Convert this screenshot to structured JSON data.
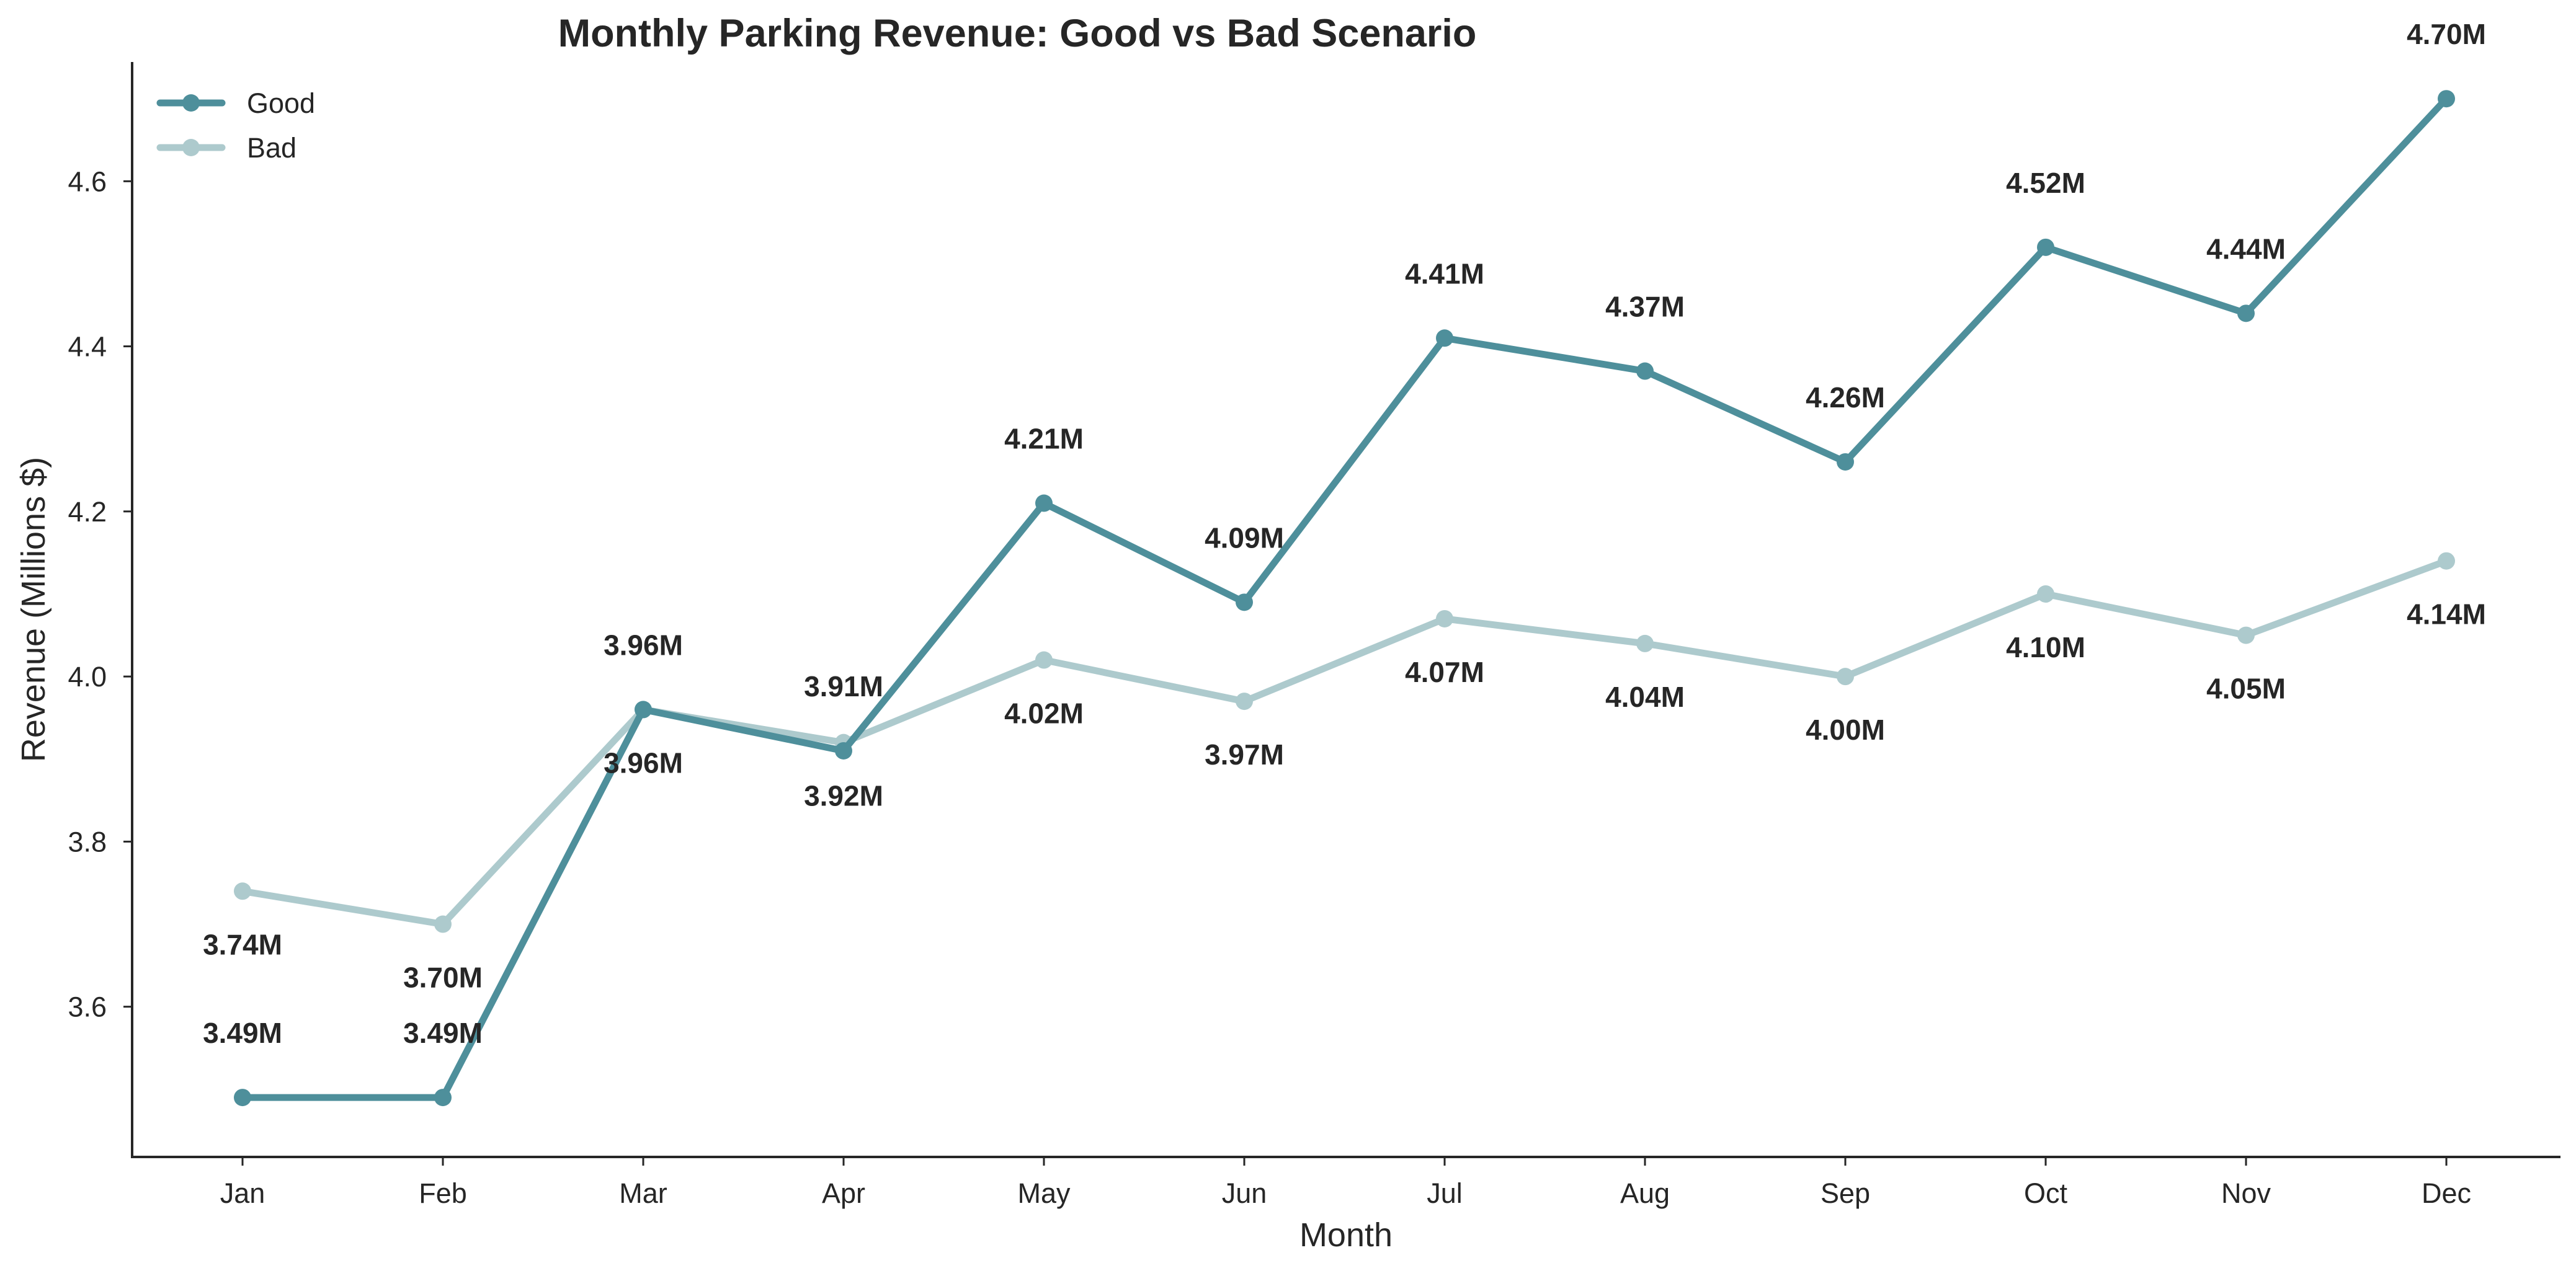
{
  "chart_data": {
    "type": "line",
    "title": "Monthly Parking Revenue: Good vs Bad Scenario",
    "xlabel": "Month",
    "ylabel": "Revenue (Millions $)",
    "categories": [
      "Jan",
      "Feb",
      "Mar",
      "Apr",
      "May",
      "Jun",
      "Jul",
      "Aug",
      "Sep",
      "Oct",
      "Nov",
      "Dec"
    ],
    "ylim": [
      3.43,
      4.77
    ],
    "yticks": [
      3.6,
      3.8,
      4.0,
      4.2,
      4.4,
      4.6
    ],
    "ytick_labels": [
      "3.6",
      "3.8",
      "4.0",
      "4.2",
      "4.4",
      "4.6"
    ],
    "grid": false,
    "legend_position": "top-left",
    "series": [
      {
        "name": "Good",
        "color": "#4e8f9b",
        "label_placement": "above",
        "values": [
          3.49,
          3.49,
          3.96,
          3.91,
          4.21,
          4.09,
          4.41,
          4.37,
          4.26,
          4.52,
          4.44,
          4.7
        ],
        "labels": [
          "3.49M",
          "3.49M",
          "3.96M",
          "3.91M",
          "4.21M",
          "4.09M",
          "4.41M",
          "4.37M",
          "4.26M",
          "4.52M",
          "4.44M",
          "4.70M"
        ]
      },
      {
        "name": "Bad",
        "color": "#adcacd",
        "label_placement": "below",
        "values": [
          3.74,
          3.7,
          3.96,
          3.92,
          4.02,
          3.97,
          4.07,
          4.04,
          4.0,
          4.1,
          4.05,
          4.14
        ],
        "labels": [
          "3.74M",
          "3.70M",
          "3.96M",
          "3.92M",
          "4.02M",
          "3.97M",
          "4.07M",
          "4.04M",
          "4.00M",
          "4.10M",
          "4.05M",
          "4.14M"
        ]
      }
    ]
  }
}
